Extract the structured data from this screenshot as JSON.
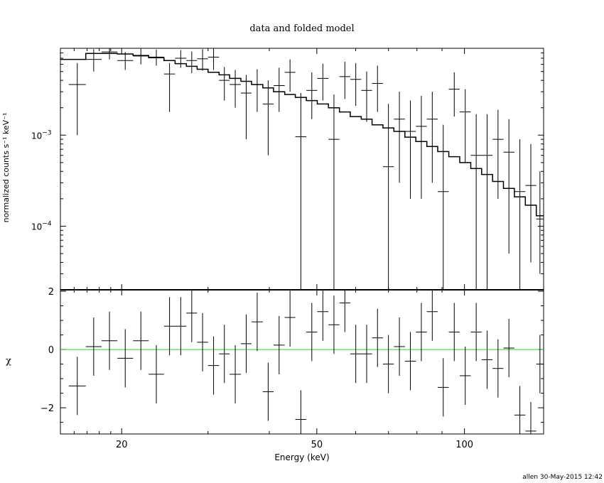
{
  "title": "data and folded model",
  "footer": "allen 30-May-2015 12:42",
  "colors": {
    "data": "#000000",
    "model": "#000000",
    "zero_line": "#33cc33"
  },
  "chart_data": [
    {
      "type": "line",
      "panel": "upper",
      "title": "data and folded model",
      "ylabel": "normalized counts s⁻¹ keV⁻¹",
      "xlabel": "",
      "xscale": "log",
      "yscale": "log",
      "xlim": [
        15,
        145
      ],
      "ylim": [
        2e-05,
        0.009
      ],
      "yticks": [
        {
          "value": 0.001,
          "base": "10",
          "exp": "−3"
        },
        {
          "value": 0.0001,
          "base": "10",
          "exp": "−4"
        }
      ],
      "data_points": [
        [
          15.6,
          16.9,
          0.0036,
          0.001,
          0.0062
        ],
        [
          16.9,
          18.2,
          0.0068,
          0.005,
          0.0088
        ],
        [
          18.2,
          19.6,
          0.0082,
          0.0068,
          0.0098
        ],
        [
          19.6,
          21.1,
          0.0066,
          0.0052,
          0.0082
        ],
        [
          21.1,
          22.7,
          0.0074,
          0.006,
          0.0089
        ],
        [
          22.7,
          24.4,
          0.0072,
          0.0058,
          0.0087
        ],
        [
          24.4,
          25.7,
          0.0047,
          0.0018,
          0.0062
        ],
        [
          25.7,
          27.1,
          0.007,
          0.0055,
          0.0086
        ],
        [
          27.1,
          28.5,
          0.0066,
          0.0048,
          0.0083
        ],
        [
          28.5,
          30.0,
          0.0069,
          0.0051,
          0.0088
        ],
        [
          30.0,
          31.6,
          0.0072,
          0.0052,
          0.0091
        ],
        [
          31.6,
          33.2,
          0.004,
          0.0024,
          0.0056
        ],
        [
          33.2,
          35.0,
          0.0036,
          0.002,
          0.0052
        ],
        [
          35.0,
          36.8,
          0.0029,
          0.0009,
          0.0046
        ],
        [
          36.8,
          38.8,
          0.0036,
          0.0018,
          0.0053
        ],
        [
          38.8,
          40.8,
          0.0022,
          0.0006,
          0.004
        ],
        [
          40.8,
          43.0,
          0.0035,
          0.0018,
          0.0055
        ],
        [
          43.0,
          45.2,
          0.0049,
          0.003,
          0.0068
        ],
        [
          45.2,
          47.6,
          0.00096,
          2e-05,
          0.0029
        ],
        [
          47.6,
          50.1,
          0.0031,
          0.0015,
          0.0049
        ],
        [
          50.1,
          52.8,
          0.0042,
          0.0024,
          0.0061
        ],
        [
          52.8,
          55.6,
          0.0009,
          2e-05,
          0.0028
        ],
        [
          55.6,
          58.5,
          0.0044,
          0.0025,
          0.0064
        ],
        [
          58.5,
          61.6,
          0.0041,
          0.0021,
          0.0062
        ],
        [
          61.6,
          64.8,
          0.0031,
          0.0014,
          0.005
        ],
        [
          64.8,
          68.2,
          0.0037,
          0.0018,
          0.0058
        ],
        [
          68.2,
          71.8,
          0.00045,
          2e-05,
          0.0022
        ],
        [
          71.8,
          75.6,
          0.0015,
          0.0003,
          0.003
        ],
        [
          75.6,
          79.6,
          0.0011,
          0.0002,
          0.0024
        ],
        [
          79.6,
          83.8,
          0.00125,
          0.0002,
          0.0027
        ],
        [
          83.8,
          88.2,
          0.0015,
          0.0003,
          0.003
        ],
        [
          88.2,
          92.9,
          0.00024,
          2e-05,
          0.0013
        ],
        [
          92.9,
          97.8,
          0.0032,
          0.0016,
          0.0049
        ],
        [
          97.8,
          103,
          0.0018,
          0.0005,
          0.0032
        ],
        [
          103,
          108.4,
          0.0006,
          2e-05,
          0.0017
        ],
        [
          108.4,
          114.1,
          0.0006,
          2e-05,
          0.0017
        ],
        [
          114.1,
          120.1,
          0.0009,
          0.0002,
          0.0019
        ],
        [
          120.1,
          126.4,
          0.00065,
          5e-05,
          0.0015
        ],
        [
          126.4,
          133.1,
          0.00024,
          2e-05,
          0.0009
        ],
        [
          133.1,
          140.1,
          0.00028,
          4e-05,
          0.0008
        ],
        [
          140.1,
          145,
          0.00012,
          3e-05,
          0.0004
        ]
      ],
      "model_step": [
        [
          15.0,
          0.0068
        ],
        [
          16.9,
          0.0079
        ],
        [
          19.6,
          0.0078
        ],
        [
          21.1,
          0.0075
        ],
        [
          22.7,
          0.0071
        ],
        [
          24.4,
          0.0066
        ],
        [
          25.7,
          0.0061
        ],
        [
          27.1,
          0.0057
        ],
        [
          28.5,
          0.0053
        ],
        [
          30.0,
          0.0049
        ],
        [
          31.6,
          0.0046
        ],
        [
          33.2,
          0.0042
        ],
        [
          35.0,
          0.0039
        ],
        [
          36.8,
          0.0036
        ],
        [
          38.8,
          0.0033
        ],
        [
          40.8,
          0.003
        ],
        [
          43.0,
          0.0028
        ],
        [
          45.2,
          0.0026
        ],
        [
          47.6,
          0.0024
        ],
        [
          50.1,
          0.0022
        ],
        [
          52.8,
          0.002
        ],
        [
          55.6,
          0.0018
        ],
        [
          58.5,
          0.0016
        ],
        [
          61.6,
          0.0015
        ],
        [
          64.8,
          0.0013
        ],
        [
          68.2,
          0.0012
        ],
        [
          71.8,
          0.0011
        ],
        [
          75.6,
          0.00095
        ],
        [
          79.6,
          0.00085
        ],
        [
          83.8,
          0.00075
        ],
        [
          88.2,
          0.00066
        ],
        [
          92.9,
          0.00058
        ],
        [
          97.8,
          0.0005
        ],
        [
          103,
          0.00043
        ],
        [
          108.4,
          0.00037
        ],
        [
          114.1,
          0.00031
        ],
        [
          120.1,
          0.00026
        ],
        [
          126.4,
          0.00021
        ],
        [
          133.1,
          0.00017
        ],
        [
          140.1,
          0.00013
        ],
        [
          145,
          0.00013
        ]
      ]
    },
    {
      "type": "scatter",
      "panel": "lower",
      "ylabel": "χ",
      "xlabel": "Energy (keV)",
      "xscale": "log",
      "xlim": [
        15,
        145
      ],
      "ylim": [
        -2.9,
        2.05
      ],
      "xticks": [
        20,
        50,
        100
      ],
      "yticks": [
        2,
        0,
        -2
      ],
      "residuals": [
        [
          15.6,
          16.9,
          -1.25
        ],
        [
          16.9,
          18.2,
          0.1
        ],
        [
          18.2,
          19.6,
          0.3
        ],
        [
          19.6,
          21.1,
          -0.3
        ],
        [
          21.1,
          22.7,
          0.3
        ],
        [
          22.7,
          24.4,
          -0.85
        ],
        [
          24.4,
          25.7,
          0.8
        ],
        [
          25.7,
          27.1,
          0.8
        ],
        [
          27.1,
          28.5,
          1.25
        ],
        [
          28.5,
          30.0,
          0.25
        ],
        [
          30.0,
          31.6,
          -0.55
        ],
        [
          31.6,
          33.2,
          -0.15
        ],
        [
          33.2,
          35.0,
          -0.85
        ],
        [
          35.0,
          36.8,
          0.2
        ],
        [
          36.8,
          38.8,
          0.95
        ],
        [
          38.8,
          40.8,
          -1.45
        ],
        [
          40.8,
          43.0,
          0.15
        ],
        [
          43.0,
          45.2,
          1.1
        ],
        [
          45.2,
          47.6,
          -2.4
        ],
        [
          47.6,
          50.1,
          0.6
        ],
        [
          50.1,
          52.8,
          1.3
        ],
        [
          52.8,
          55.6,
          0.85
        ],
        [
          55.6,
          58.5,
          1.6
        ],
        [
          58.5,
          61.6,
          -0.15
        ],
        [
          61.6,
          64.8,
          -0.15
        ],
        [
          64.8,
          68.2,
          0.4
        ],
        [
          68.2,
          71.8,
          -0.5
        ],
        [
          71.8,
          75.6,
          0.1
        ],
        [
          75.6,
          79.6,
          -0.4
        ],
        [
          79.6,
          83.8,
          0.6
        ],
        [
          83.8,
          88.2,
          1.3
        ],
        [
          88.2,
          92.9,
          -1.3
        ],
        [
          92.9,
          97.8,
          0.6
        ],
        [
          97.8,
          103,
          -0.9
        ],
        [
          103,
          108.4,
          0.6
        ],
        [
          108.4,
          114.1,
          -0.35
        ],
        [
          114.1,
          120.1,
          -0.65
        ],
        [
          120.1,
          126.4,
          0.05
        ],
        [
          126.4,
          133.1,
          -2.25
        ],
        [
          133.1,
          140.1,
          -2.8
        ],
        [
          140.1,
          145,
          -0.5
        ]
      ],
      "residual_err": 1.0,
      "zero_line": 0
    }
  ]
}
